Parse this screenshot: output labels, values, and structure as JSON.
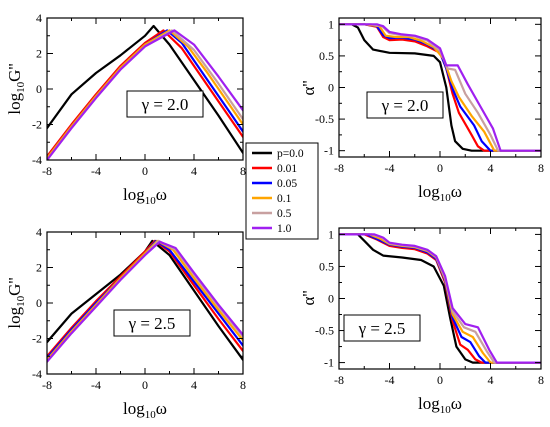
{
  "colors": {
    "p=0.0": "#000000",
    "0.01": "#ff0000",
    "0.05": "#0000ff",
    "0.1": "#ffa500",
    "0.5": "#c8a0a0",
    "1.0": "#a020f0"
  },
  "legend": {
    "placement": "center (between panels)",
    "entries": [
      "p=0.0",
      "0.01",
      "0.05",
      "0.1",
      "0.5",
      "1.0"
    ]
  },
  "chart_data": [
    {
      "type": "line",
      "panel": "top-left",
      "xlabel_base": "log",
      "xlabel_sub": "10",
      "xlabel_var": "ω",
      "ylabel_base": "log",
      "ylabel_sub": "10",
      "ylabel_var": "G''",
      "xlim": [
        -8,
        8
      ],
      "ylim": [
        -4,
        4
      ],
      "xticks": [
        -8,
        -4,
        0,
        4,
        8
      ],
      "yticks": [
        -4,
        -2,
        0,
        2,
        4
      ],
      "annotation": "γ = 2.0",
      "series": [
        {
          "name": "p=0.0",
          "x": [
            -8,
            -6,
            -4,
            -2,
            0,
            0.7,
            2,
            4,
            6,
            8
          ],
          "y": [
            -2.2,
            -0.3,
            0.9,
            1.9,
            3.0,
            3.55,
            2.5,
            0.5,
            -1.5,
            -3.6
          ]
        },
        {
          "name": "0.01",
          "x": [
            -8,
            -6,
            -4,
            -2,
            0,
            1.5,
            3,
            5,
            7,
            8
          ],
          "y": [
            -3.8,
            -2.0,
            -0.3,
            1.3,
            2.6,
            3.3,
            2.3,
            0.3,
            -1.7,
            -2.7
          ]
        },
        {
          "name": "0.05",
          "x": [
            -8,
            -6,
            -4,
            -2,
            0,
            1.8,
            3,
            5,
            7,
            8
          ],
          "y": [
            -3.9,
            -2.1,
            -0.4,
            1.2,
            2.5,
            3.3,
            2.6,
            0.6,
            -1.4,
            -2.4
          ]
        },
        {
          "name": "0.1",
          "x": [
            -8,
            -6,
            -4,
            -2,
            0,
            2,
            3.5,
            5,
            7,
            8
          ],
          "y": [
            -3.9,
            -2.1,
            -0.4,
            1.2,
            2.5,
            3.3,
            2.4,
            1.0,
            -1.0,
            -2.0
          ]
        },
        {
          "name": "0.5",
          "x": [
            -8,
            -6,
            -4,
            -2,
            0,
            2.2,
            4,
            6,
            8
          ],
          "y": [
            -4.0,
            -2.2,
            -0.5,
            1.1,
            2.4,
            3.3,
            2.2,
            0.3,
            -1.7
          ]
        },
        {
          "name": "1.0",
          "x": [
            -8,
            -6,
            -4,
            -2,
            0,
            2.4,
            4,
            6,
            8
          ],
          "y": [
            -4.0,
            -2.2,
            -0.5,
            1.1,
            2.4,
            3.3,
            2.5,
            0.7,
            -1.2
          ]
        }
      ]
    },
    {
      "type": "line",
      "panel": "top-right",
      "xlabel_base": "log",
      "xlabel_sub": "10",
      "xlabel_var": "ω",
      "ylabel_base": "",
      "ylabel_sub": "",
      "ylabel_var": "α''",
      "xlim": [
        -8,
        8
      ],
      "ylim": [
        -1.1,
        1.1
      ],
      "xticks": [
        -8,
        -4,
        0,
        4,
        8
      ],
      "yticks": [
        -1,
        -0.5,
        0,
        0.5,
        1
      ],
      "annotation": "γ = 2.0",
      "series": [
        {
          "name": "p=0.0",
          "x": [
            -8,
            -7,
            -6.5,
            -6,
            -5.3,
            -4,
            -2,
            -0.5,
            0,
            0.5,
            0.9,
            1.2,
            1.8,
            2.5,
            8
          ],
          "y": [
            1,
            1,
            0.95,
            0.75,
            0.6,
            0.55,
            0.54,
            0.5,
            0.4,
            0,
            -0.6,
            -0.85,
            -0.97,
            -1,
            -1
          ]
        },
        {
          "name": "0.01",
          "x": [
            -8,
            -6,
            -5,
            -4.5,
            -4,
            -3,
            -2,
            -1,
            0,
            0.5,
            1,
            1.5,
            2.5,
            3,
            3.5,
            8
          ],
          "y": [
            1,
            1,
            0.96,
            0.8,
            0.75,
            0.76,
            0.73,
            0.65,
            0.55,
            0.3,
            -0.1,
            -0.4,
            -0.75,
            -0.93,
            -1,
            -1
          ]
        },
        {
          "name": "0.05",
          "x": [
            -8,
            -6,
            -5,
            -4.5,
            -4,
            -3,
            -2,
            -1,
            0,
            0.5,
            1,
            1.6,
            2.7,
            3.3,
            4,
            8
          ],
          "y": [
            1,
            1,
            0.97,
            0.83,
            0.78,
            0.79,
            0.76,
            0.68,
            0.56,
            0.3,
            -0.02,
            -0.3,
            -0.6,
            -0.85,
            -1,
            -1
          ]
        },
        {
          "name": "0.1",
          "x": [
            -8,
            -6,
            -4.8,
            -4.3,
            -3.5,
            -2.5,
            -1.5,
            -0.5,
            0.3,
            0.9,
            1.5,
            2.5,
            3.5,
            4.3,
            8
          ],
          "y": [
            1,
            1,
            0.97,
            0.82,
            0.8,
            0.8,
            0.74,
            0.64,
            0.45,
            0.1,
            -0.15,
            -0.45,
            -0.7,
            -1,
            -1
          ]
        },
        {
          "name": "0.5",
          "x": [
            -8,
            -5.5,
            -4.6,
            -4,
            -3,
            -2,
            -1,
            0,
            0.6,
            1.2,
            2,
            3,
            4,
            4.6,
            8
          ],
          "y": [
            1,
            1,
            0.97,
            0.86,
            0.83,
            0.81,
            0.74,
            0.58,
            0.3,
            0.28,
            -0.1,
            -0.4,
            -0.75,
            -1,
            -1
          ]
        },
        {
          "name": "1.0",
          "x": [
            -8,
            -5,
            -4.5,
            -4,
            -3,
            -2,
            -1,
            0,
            0.5,
            1.4,
            2.2,
            3.2,
            4.2,
            4.8,
            8
          ],
          "y": [
            1,
            1,
            0.97,
            0.88,
            0.84,
            0.82,
            0.76,
            0.62,
            0.35,
            0.35,
            0.05,
            -0.3,
            -0.65,
            -1,
            -1
          ]
        }
      ]
    },
    {
      "type": "line",
      "panel": "bottom-left",
      "xlabel_base": "log",
      "xlabel_sub": "10",
      "xlabel_var": "ω",
      "ylabel_base": "log",
      "ylabel_sub": "10",
      "ylabel_var": "G''",
      "xlim": [
        -8,
        8
      ],
      "ylim": [
        -4,
        4
      ],
      "xticks": [
        -8,
        -4,
        0,
        4,
        8
      ],
      "yticks": [
        -4,
        -2,
        0,
        2,
        4
      ],
      "annotation": "γ = 2.5",
      "series": [
        {
          "name": "p=0.0",
          "x": [
            -8,
            -6,
            -4,
            -2,
            0,
            0.6,
            2,
            4,
            6,
            8
          ],
          "y": [
            -2.2,
            -0.6,
            0.5,
            1.6,
            2.9,
            3.5,
            2.7,
            0.7,
            -1.3,
            -3.2
          ]
        },
        {
          "name": "0.01",
          "x": [
            -8,
            -6,
            -4,
            -2,
            0,
            0.8,
            2,
            4,
            6,
            8
          ],
          "y": [
            -3.0,
            -1.4,
            0.1,
            1.5,
            2.9,
            3.5,
            2.9,
            1.0,
            -0.9,
            -2.7
          ]
        },
        {
          "name": "0.05",
          "x": [
            -8,
            -6,
            -4,
            -2,
            0,
            0.9,
            2,
            4,
            6,
            8
          ],
          "y": [
            -3.1,
            -1.5,
            0.0,
            1.4,
            2.8,
            3.5,
            3.0,
            1.2,
            -0.6,
            -2.4
          ]
        },
        {
          "name": "0.1",
          "x": [
            -8,
            -6,
            -4,
            -2,
            0,
            1.0,
            2.3,
            4,
            6,
            8
          ],
          "y": [
            -3.2,
            -1.6,
            -0.1,
            1.4,
            2.8,
            3.5,
            3.0,
            1.4,
            -0.4,
            -2.1
          ]
        },
        {
          "name": "0.5",
          "x": [
            -8,
            -6,
            -4,
            -2,
            0,
            1.1,
            2.5,
            4,
            6,
            8
          ],
          "y": [
            -3.3,
            -1.7,
            -0.2,
            1.3,
            2.7,
            3.5,
            3.0,
            1.6,
            -0.2,
            -1.9
          ]
        },
        {
          "name": "1.0",
          "x": [
            -8,
            -6,
            -4,
            -2,
            0,
            1.2,
            2.5,
            4,
            6,
            8
          ],
          "y": [
            -3.3,
            -1.7,
            -0.2,
            1.3,
            2.7,
            3.45,
            3.1,
            1.7,
            -0.1,
            -1.8
          ]
        }
      ]
    },
    {
      "type": "line",
      "panel": "bottom-right",
      "xlabel_base": "log",
      "xlabel_sub": "10",
      "xlabel_var": "ω",
      "ylabel_base": "",
      "ylabel_sub": "",
      "ylabel_var": "α''",
      "xlim": [
        -8,
        8
      ],
      "ylim": [
        -1.1,
        1.1
      ],
      "xticks": [
        -8,
        -4,
        0,
        4,
        8
      ],
      "yticks": [
        -1,
        -0.5,
        0,
        0.5,
        1
      ],
      "annotation": "γ = 2.5",
      "series": [
        {
          "name": "p=0.0",
          "x": [
            -8,
            -6.5,
            -6,
            -5.3,
            -4.5,
            -3,
            -1.5,
            -0.5,
            0.3,
            0.8,
            1.3,
            2,
            2.6,
            8
          ],
          "y": [
            1,
            1,
            0.9,
            0.76,
            0.67,
            0.64,
            0.6,
            0.5,
            0.2,
            -0.3,
            -0.75,
            -0.95,
            -1,
            -1
          ]
        },
        {
          "name": "0.01",
          "x": [
            -8,
            -6,
            -5,
            -4,
            -3,
            -2,
            -1,
            -0.3,
            0.4,
            1,
            1.6,
            2.2,
            2.8,
            3.3,
            8
          ],
          "y": [
            1,
            1,
            0.92,
            0.82,
            0.79,
            0.77,
            0.7,
            0.6,
            0.25,
            -0.35,
            -0.72,
            -0.8,
            -0.95,
            -1,
            -1
          ]
        },
        {
          "name": "0.05",
          "x": [
            -8,
            -5.8,
            -5,
            -4,
            -3,
            -2,
            -1,
            -0.3,
            0.4,
            1,
            1.7,
            2.4,
            3.1,
            3.6,
            8
          ],
          "y": [
            1,
            1,
            0.93,
            0.84,
            0.81,
            0.79,
            0.72,
            0.62,
            0.28,
            -0.3,
            -0.6,
            -0.68,
            -0.9,
            -1,
            -1
          ]
        },
        {
          "name": "0.1",
          "x": [
            -8,
            -5.6,
            -4.8,
            -4,
            -3,
            -2,
            -1,
            -0.3,
            0.4,
            1,
            1.8,
            2.6,
            3.4,
            4,
            8
          ],
          "y": [
            1,
            1,
            0.94,
            0.85,
            0.82,
            0.8,
            0.74,
            0.64,
            0.3,
            -0.25,
            -0.52,
            -0.6,
            -0.85,
            -1,
            -1
          ]
        },
        {
          "name": "0.5",
          "x": [
            -8,
            -5.4,
            -4.6,
            -4,
            -3,
            -2,
            -1,
            -0.3,
            0.4,
            1,
            1.9,
            2.8,
            3.7,
            4.3,
            8
          ],
          "y": [
            1,
            1,
            0.95,
            0.86,
            0.83,
            0.81,
            0.75,
            0.65,
            0.32,
            -0.2,
            -0.45,
            -0.52,
            -0.82,
            -1,
            -1
          ]
        },
        {
          "name": "1.0",
          "x": [
            -8,
            -5.2,
            -4.5,
            -4,
            -3,
            -2,
            -1,
            -0.3,
            0.4,
            1,
            2,
            3,
            3.9,
            4.5,
            8
          ],
          "y": [
            1,
            1,
            0.95,
            0.87,
            0.84,
            0.82,
            0.76,
            0.66,
            0.35,
            -0.15,
            -0.4,
            -0.45,
            -0.8,
            -1,
            -1
          ]
        }
      ]
    }
  ]
}
